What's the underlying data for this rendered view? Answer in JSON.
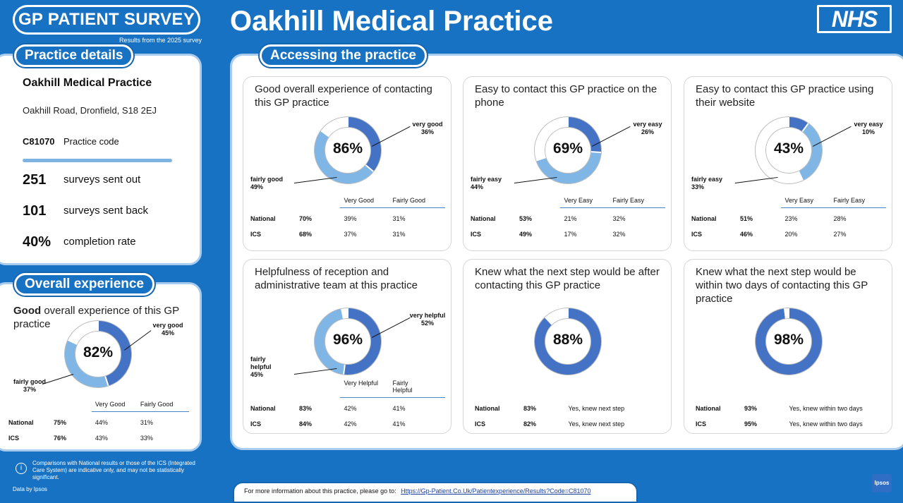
{
  "header": {
    "logo_text": "GP PATIENT SURVEY",
    "logo_subtitle": "Results from the 2025 survey",
    "title": "Oakhill Medical Practice",
    "nhs_logo": "NHS"
  },
  "practice_details": {
    "heading": "Practice details",
    "name": "Oakhill Medical Practice",
    "address": "Oakhill Road, Dronfield, S18 2EJ",
    "code": "C81070",
    "code_label": "Practice code",
    "stats": [
      {
        "value": "251",
        "label": "surveys sent out"
      },
      {
        "value": "101",
        "label": "surveys sent back"
      },
      {
        "value": "40%",
        "label": "completion rate"
      }
    ]
  },
  "overall_experience": {
    "heading": "Overall experience",
    "title_bold": "Good",
    "title_rest": " overall experience of this GP practice",
    "total": "82%",
    "seg1_label": "very good\n45%",
    "seg2_label": "fairly good\n37%",
    "seg1": 45,
    "seg2": 37,
    "col1": "Very Good",
    "col2": "Fairly Good",
    "rows": [
      {
        "name": "National",
        "total": "75%",
        "c1": "44%",
        "c2": "31%"
      },
      {
        "name": "ICS",
        "total": "76%",
        "c1": "43%",
        "c2": "33%"
      }
    ]
  },
  "accessing": {
    "heading": "Accessing the practice",
    "cards": [
      {
        "title": "Good overall experience of contacting this GP practice",
        "total": "86%",
        "seg1": 36,
        "seg2": 49,
        "seg1_label": "very good\n36%",
        "seg2_label": "fairly good\n49%",
        "col1": "Very Good",
        "col2": "Fairly Good",
        "rows": [
          {
            "name": "National",
            "total": "70%",
            "c1": "39%",
            "c2": "31%"
          },
          {
            "name": "ICS",
            "total": "68%",
            "c1": "37%",
            "c2": "31%"
          }
        ]
      },
      {
        "title": "Easy to contact this GP practice on the phone",
        "total": "69%",
        "seg1": 26,
        "seg2": 44,
        "seg1_label": "very easy\n26%",
        "seg2_label": "fairly easy\n44%",
        "col1": "Very Easy",
        "col2": "Fairly Easy",
        "rows": [
          {
            "name": "National",
            "total": "53%",
            "c1": "21%",
            "c2": "32%"
          },
          {
            "name": "ICS",
            "total": "49%",
            "c1": "17%",
            "c2": "32%"
          }
        ]
      },
      {
        "title": "Easy to contact this GP practice using their website",
        "total": "43%",
        "seg1": 10,
        "seg2": 33,
        "seg1_label": "very easy\n10%",
        "seg2_label": "fairly easy\n33%",
        "col1": "Very Easy",
        "col2": "Fairly Easy",
        "rows": [
          {
            "name": "National",
            "total": "51%",
            "c1": "23%",
            "c2": "28%"
          },
          {
            "name": "ICS",
            "total": "46%",
            "c1": "20%",
            "c2": "27%"
          }
        ]
      },
      {
        "title": "Helpfulness of reception and administrative team at this practice",
        "total": "96%",
        "seg1": 52,
        "seg2": 45,
        "seg1_label": "very helpful\n52%",
        "seg2_label": "fairly\nhelpful\n45%",
        "col1": "Very Helpful",
        "col2": "Fairly\nHelpful",
        "rows": [
          {
            "name": "National",
            "total": "83%",
            "c1": "42%",
            "c2": "41%"
          },
          {
            "name": "ICS",
            "total": "84%",
            "c1": "42%",
            "c2": "41%"
          }
        ]
      },
      {
        "title": "Knew what the next step would be after contacting this GP practice",
        "total": "88%",
        "seg1": 88,
        "seg2": 0,
        "rows": [
          {
            "name": "National",
            "total": "83%",
            "c1": "Yes, knew next step"
          },
          {
            "name": "ICS",
            "total": "82%",
            "c1": "Yes, knew next step"
          }
        ]
      },
      {
        "title": "Knew what the next step would be within two days of contacting this GP practice",
        "total": "98%",
        "seg1": 98,
        "seg2": 0,
        "rows": [
          {
            "name": "National",
            "total": "93%",
            "c1": "Yes, knew within two days"
          },
          {
            "name": "ICS",
            "total": "95%",
            "c1": "Yes, knew within two days"
          }
        ]
      }
    ]
  },
  "footer": {
    "info_text": "Comparisons with National results or those of the ICS (Integrated Care System) are indicative only, and may not be statistically significant.",
    "data_by": "Data by Ipsos",
    "more_info": "For more information about this practice, please go to:",
    "link": "Https://Gp-Patient.Co.Uk/Patientexperience/Results?Code=C81070",
    "ipsos_logo": "Ipsos"
  },
  "colors": {
    "dark": "#4472c4",
    "light": "#7fb6e6",
    "rest": "#ffffff",
    "brand": "#1872c4"
  }
}
